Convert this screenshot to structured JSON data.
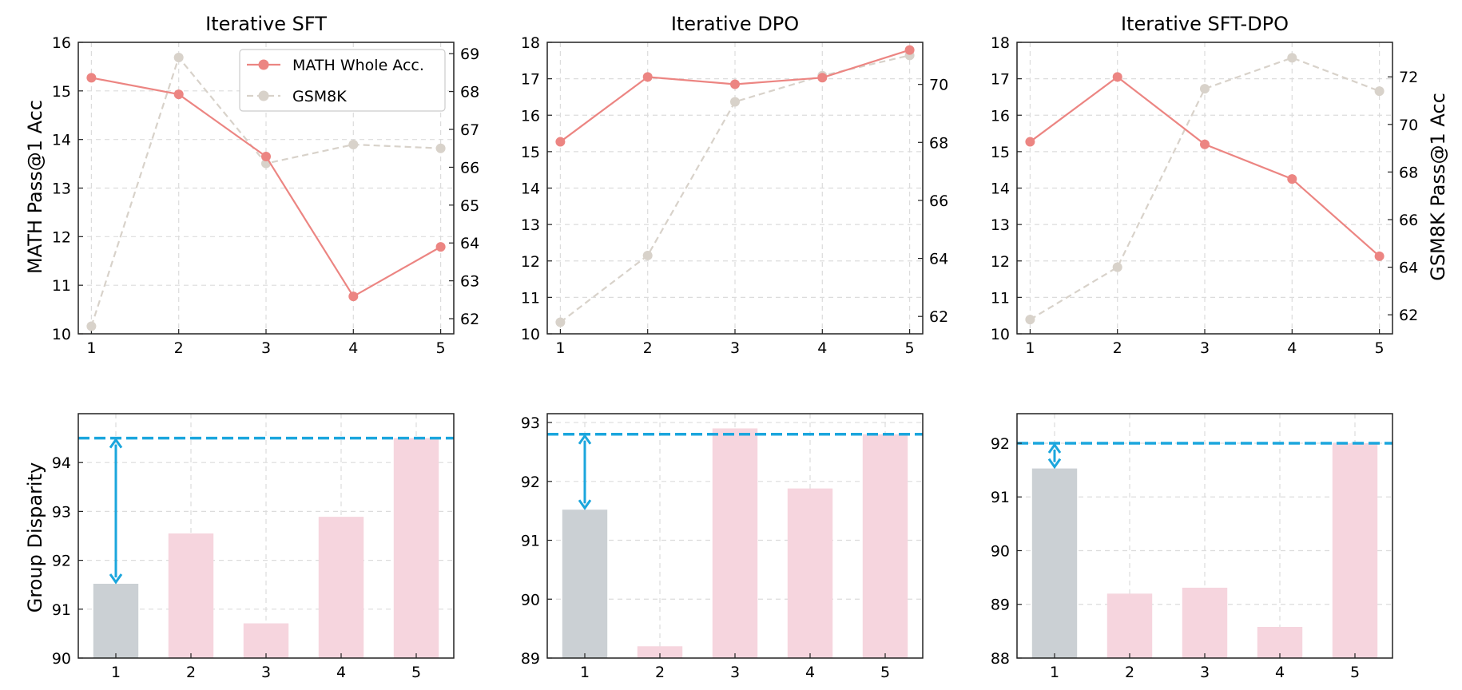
{
  "colors": {
    "math": "#ec8582",
    "gsm8k": "#d8d2ca",
    "bar_base": "#cbd0d4",
    "bar": "#f6d5de",
    "ref": "#1ba6dd"
  },
  "labels": {
    "math_axis": "MATH Pass@1 Acc",
    "gsm_axis": "GSM8K Pass@1 Acc",
    "group_axis": "Group Disparity",
    "legend_math": "MATH Whole Acc.",
    "legend_gsm": "GSM8K"
  },
  "chart_data": [
    {
      "type": "line",
      "title": "Iterative SFT",
      "x": [
        1,
        2,
        3,
        4,
        5
      ],
      "xticks": [
        "1",
        "2",
        "3",
        "4",
        "5"
      ],
      "ylim_left": [
        10,
        16
      ],
      "yticks_left": [
        10,
        11,
        12,
        13,
        14,
        15,
        16
      ],
      "ylim_right": [
        61.6,
        69.3
      ],
      "yticks_right": [
        62,
        63,
        64,
        65,
        66,
        67,
        68,
        69
      ],
      "series": [
        {
          "name": "MATH Whole Acc.",
          "axis": "left",
          "values": [
            15.27,
            14.93,
            13.65,
            10.77,
            11.79
          ]
        },
        {
          "name": "GSM8K",
          "axis": "right",
          "values": [
            61.8,
            68.9,
            66.1,
            66.6,
            66.5
          ]
        }
      ]
    },
    {
      "type": "line",
      "title": "Iterative DPO",
      "x": [
        1,
        2,
        3,
        4,
        5
      ],
      "xticks": [
        "1",
        "2",
        "3",
        "4",
        "5"
      ],
      "ylim_left": [
        10,
        18
      ],
      "yticks_left": [
        10,
        11,
        12,
        13,
        14,
        15,
        16,
        17,
        18
      ],
      "ylim_right": [
        61.4,
        71.45
      ],
      "yticks_right": [
        62,
        64,
        66,
        68,
        70
      ],
      "series": [
        {
          "name": "MATH Whole Acc.",
          "axis": "left",
          "values": [
            15.27,
            17.05,
            16.85,
            17.03,
            17.79
          ]
        },
        {
          "name": "GSM8K",
          "axis": "right",
          "values": [
            61.8,
            64.1,
            69.4,
            70.3,
            71.0
          ]
        }
      ]
    },
    {
      "type": "line",
      "title": "Iterative SFT-DPO",
      "x": [
        1,
        2,
        3,
        4,
        5
      ],
      "xticks": [
        "1",
        "2",
        "3",
        "4",
        "5"
      ],
      "ylim_left": [
        10,
        18
      ],
      "yticks_left": [
        10,
        11,
        12,
        13,
        14,
        15,
        16,
        17,
        18
      ],
      "ylim_right": [
        61.2,
        73.45
      ],
      "yticks_right": [
        62,
        64,
        66,
        68,
        70,
        72
      ],
      "series": [
        {
          "name": "MATH Whole Acc.",
          "axis": "left",
          "values": [
            15.27,
            17.05,
            15.2,
            14.25,
            12.13
          ]
        },
        {
          "name": "GSM8K",
          "axis": "right",
          "values": [
            61.8,
            64.0,
            71.5,
            72.8,
            71.4
          ]
        }
      ]
    },
    {
      "type": "bar",
      "categories": [
        "1",
        "2",
        "3",
        "4",
        "5"
      ],
      "values": [
        91.52,
        92.55,
        90.71,
        92.89,
        94.5
      ],
      "ylim": [
        90,
        95.0
      ],
      "yticks": [
        90,
        91,
        92,
        93,
        94
      ],
      "ref_line": 94.5,
      "arrow": {
        "from": 91.52,
        "to": 94.5
      }
    },
    {
      "type": "bar",
      "categories": [
        "1",
        "2",
        "3",
        "4",
        "5"
      ],
      "values": [
        91.52,
        89.2,
        92.9,
        91.88,
        92.8
      ],
      "ylim": [
        89,
        93.15
      ],
      "yticks": [
        89,
        90,
        91,
        92,
        93
      ],
      "ref_line": 92.8,
      "arrow": {
        "from": 91.52,
        "to": 92.8
      }
    },
    {
      "type": "bar",
      "categories": [
        "1",
        "2",
        "3",
        "4",
        "5"
      ],
      "values": [
        91.53,
        89.2,
        89.31,
        88.58,
        92.0
      ],
      "ylim": [
        88,
        92.55
      ],
      "yticks": [
        88,
        89,
        90,
        91,
        92
      ],
      "ref_line": 92.0,
      "arrow": {
        "from": 91.53,
        "to": 92.0
      }
    }
  ]
}
